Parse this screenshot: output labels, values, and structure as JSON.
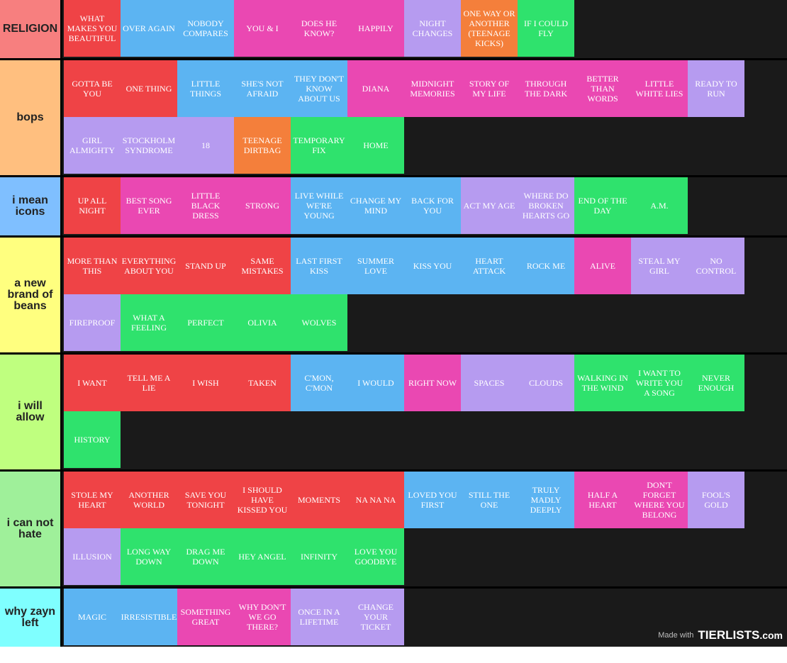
{
  "tiers": [
    {
      "label": "RELIGION",
      "color": "#f77f7f",
      "items": [
        {
          "text": "WHAT MAKES YOU BEAUTIFUL",
          "color": "red"
        },
        {
          "text": "OVER AGAIN",
          "color": "blue"
        },
        {
          "text": "NOBODY COMPARES",
          "color": "blue"
        },
        {
          "text": "YOU & I",
          "color": "pink"
        },
        {
          "text": "DOES HE KNOW?",
          "color": "pink"
        },
        {
          "text": "HAPPILY",
          "color": "pink"
        },
        {
          "text": "NIGHT CHANGES",
          "color": "purple"
        },
        {
          "text": "ONE WAY OR ANOTHER (TEENAGE KICKS)",
          "color": "orange"
        },
        {
          "text": "IF I COULD FLY",
          "color": "green"
        }
      ]
    },
    {
      "label": "bops",
      "color": "#ffbf7f",
      "items": [
        {
          "text": "GOTTA BE YOU",
          "color": "red"
        },
        {
          "text": "ONE THING",
          "color": "red"
        },
        {
          "text": "LITTLE THINGS",
          "color": "blue"
        },
        {
          "text": "SHE'S NOT AFRAID",
          "color": "blue"
        },
        {
          "text": "THEY DON'T KNOW ABOUT US",
          "color": "blue"
        },
        {
          "text": "DIANA",
          "color": "pink"
        },
        {
          "text": "MIDNIGHT MEMORIES",
          "color": "pink"
        },
        {
          "text": "STORY OF MY LIFE",
          "color": "pink"
        },
        {
          "text": "THROUGH THE DARK",
          "color": "pink"
        },
        {
          "text": "BETTER THAN WORDS",
          "color": "pink"
        },
        {
          "text": "LITTLE WHITE LIES",
          "color": "pink"
        },
        {
          "text": "READY TO RUN",
          "color": "purple"
        },
        {
          "text": "GIRL ALMIGHTY",
          "color": "purple"
        },
        {
          "text": "STOCKHOLM SYNDROME",
          "color": "purple"
        },
        {
          "text": "18",
          "color": "purple"
        },
        {
          "text": "TEENAGE DIRTBAG",
          "color": "orange"
        },
        {
          "text": "TEMPORARY FIX",
          "color": "green"
        },
        {
          "text": "HOME",
          "color": "green"
        }
      ]
    },
    {
      "label": "i mean icons",
      "color": "#7fbfff",
      "items": [
        {
          "text": "UP ALL NIGHT",
          "color": "red"
        },
        {
          "text": "BEST SONG EVER",
          "color": "pink"
        },
        {
          "text": "LITTLE BLACK DRESS",
          "color": "pink"
        },
        {
          "text": "STRONG",
          "color": "pink"
        },
        {
          "text": "LIVE WHILE WE'RE YOUNG",
          "color": "blue"
        },
        {
          "text": "CHANGE MY MIND",
          "color": "blue"
        },
        {
          "text": "BACK FOR YOU",
          "color": "blue"
        },
        {
          "text": "ACT MY AGE",
          "color": "purple"
        },
        {
          "text": "WHERE DO BROKEN HEARTS GO",
          "color": "purple"
        },
        {
          "text": "END OF THE DAY",
          "color": "green"
        },
        {
          "text": "A.M.",
          "color": "green"
        }
      ]
    },
    {
      "label": "a new brand of beans",
      "color": "#ffff7f",
      "items": [
        {
          "text": "MORE THAN THIS",
          "color": "red"
        },
        {
          "text": "EVERYTHING ABOUT YOU",
          "color": "red"
        },
        {
          "text": "STAND UP",
          "color": "red"
        },
        {
          "text": "SAME MISTAKES",
          "color": "red"
        },
        {
          "text": "LAST FIRST KISS",
          "color": "blue"
        },
        {
          "text": "SUMMER LOVE",
          "color": "blue"
        },
        {
          "text": "KISS YOU",
          "color": "blue"
        },
        {
          "text": "HEART ATTACK",
          "color": "blue"
        },
        {
          "text": "ROCK ME",
          "color": "blue"
        },
        {
          "text": "ALIVE",
          "color": "pink"
        },
        {
          "text": "STEAL MY GIRL",
          "color": "purple"
        },
        {
          "text": "NO CONTROL",
          "color": "purple"
        },
        {
          "text": "FIREPROOF",
          "color": "purple"
        },
        {
          "text": "WHAT A FEELING",
          "color": "green"
        },
        {
          "text": "PERFECT",
          "color": "green"
        },
        {
          "text": "OLIVIA",
          "color": "green"
        },
        {
          "text": "WOLVES",
          "color": "green"
        }
      ]
    },
    {
      "label": "i will allow",
      "color": "#bfff7f",
      "items": [
        {
          "text": "I WANT",
          "color": "red"
        },
        {
          "text": "TELL ME A LIE",
          "color": "red"
        },
        {
          "text": "I WISH",
          "color": "red"
        },
        {
          "text": "TAKEN",
          "color": "red"
        },
        {
          "text": "C'MON, C'MON",
          "color": "blue"
        },
        {
          "text": "I WOULD",
          "color": "blue"
        },
        {
          "text": "RIGHT NOW",
          "color": "pink"
        },
        {
          "text": "SPACES",
          "color": "purple"
        },
        {
          "text": "CLOUDS",
          "color": "purple"
        },
        {
          "text": "WALKING IN THE WIND",
          "color": "green"
        },
        {
          "text": "I WANT TO WRITE YOU A SONG",
          "color": "green"
        },
        {
          "text": "NEVER ENOUGH",
          "color": "green"
        },
        {
          "text": "HISTORY",
          "color": "green"
        }
      ]
    },
    {
      "label": "i can not hate",
      "color": "#9ff09a",
      "items": [
        {
          "text": "STOLE MY HEART",
          "color": "red"
        },
        {
          "text": "ANOTHER WORLD",
          "color": "red"
        },
        {
          "text": "SAVE YOU TONIGHT",
          "color": "red"
        },
        {
          "text": "I SHOULD HAVE KISSED YOU",
          "color": "red"
        },
        {
          "text": "MOMENTS",
          "color": "red"
        },
        {
          "text": "NA NA NA",
          "color": "red"
        },
        {
          "text": "LOVED YOU FIRST",
          "color": "blue"
        },
        {
          "text": "STILL THE ONE",
          "color": "blue"
        },
        {
          "text": "TRULY MADLY DEEPLY",
          "color": "blue"
        },
        {
          "text": "HALF A HEART",
          "color": "pink"
        },
        {
          "text": "DON'T FORGET WHERE YOU BELONG",
          "color": "pink"
        },
        {
          "text": "FOOL'S GOLD",
          "color": "purple"
        },
        {
          "text": "ILLUSION",
          "color": "purple"
        },
        {
          "text": "LONG WAY DOWN",
          "color": "green"
        },
        {
          "text": "DRAG ME DOWN",
          "color": "green"
        },
        {
          "text": "HEY ANGEL",
          "color": "green"
        },
        {
          "text": "INFINITY",
          "color": "green"
        },
        {
          "text": "LOVE YOU GOODBYE",
          "color": "green"
        }
      ]
    },
    {
      "label": "why zayn left",
      "color": "#7fffff",
      "items": [
        {
          "text": "MAGIC",
          "color": "blue"
        },
        {
          "text": "IRRESISTIBLE",
          "color": "blue"
        },
        {
          "text": "SOMETHING GREAT",
          "color": "pink"
        },
        {
          "text": "WHY DON'T WE GO THERE?",
          "color": "pink"
        },
        {
          "text": "ONCE IN A LIFETIME",
          "color": "purple"
        },
        {
          "text": "CHANGE YOUR TICKET",
          "color": "purple"
        }
      ]
    }
  ],
  "watermark": {
    "made_with": "Made with",
    "brand": "TIERLISTS",
    "suffix": ".com"
  }
}
